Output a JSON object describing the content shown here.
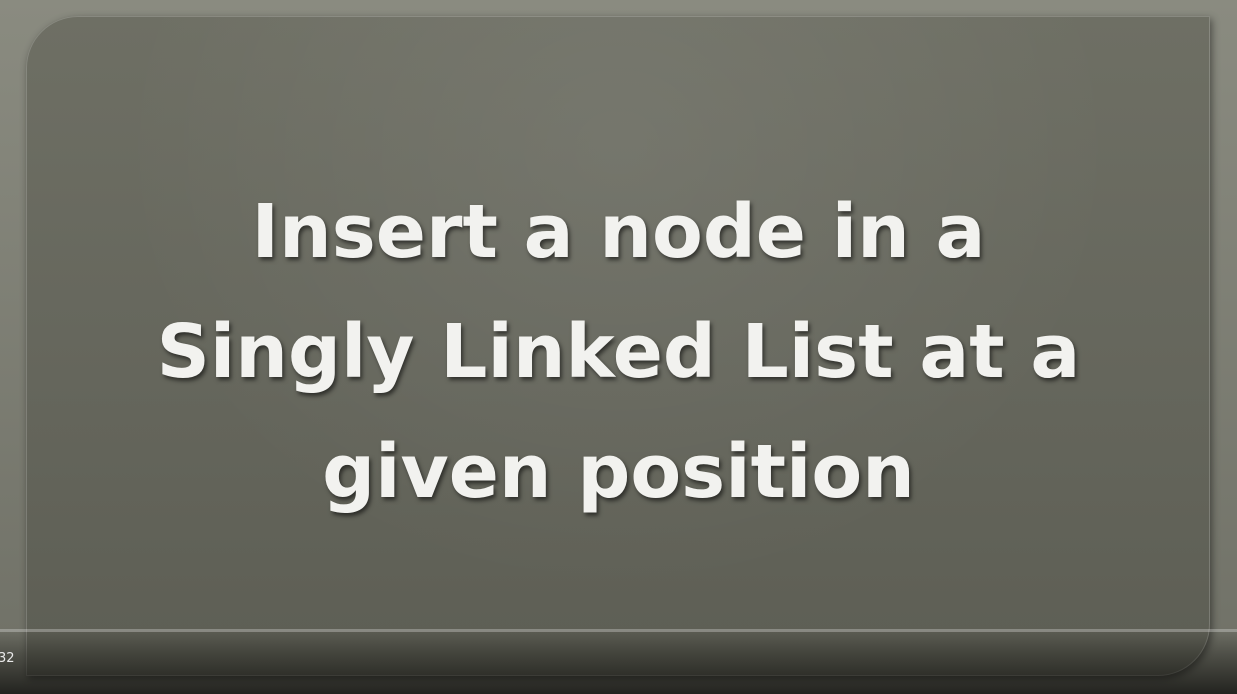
{
  "slide": {
    "title_line_1": "Insert a node in a",
    "title_line_2": "Singly Linked List at a",
    "title_line_3": "given position"
  },
  "player": {
    "time_text": "32",
    "progress_fraction": 0.0,
    "accent_color": "#e62117"
  },
  "colors": {
    "panel": "#67685e",
    "title_text": "#f2f2ef",
    "frame": "#7d7e74"
  }
}
